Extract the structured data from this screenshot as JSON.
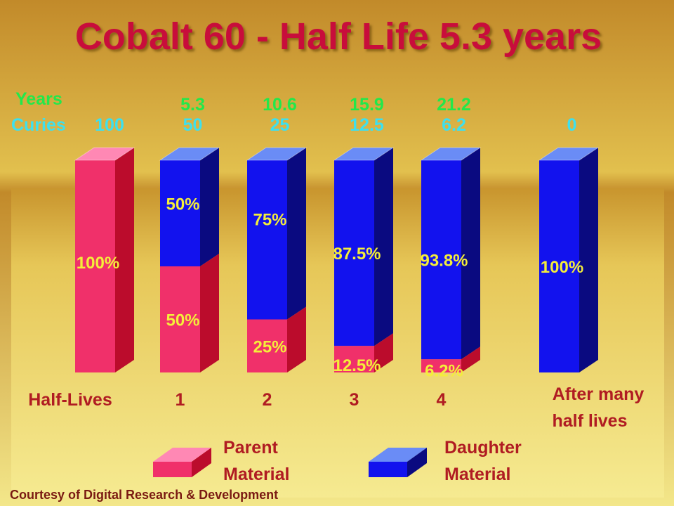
{
  "title": "Cobalt 60 - Half Life 5.3 years",
  "credit": "Courtesy of Digital Research & Development",
  "header_labels": {
    "years": "Years",
    "curies": "Curies"
  },
  "colors": {
    "background_top": "#c28a2a",
    "background_mid": "#e2c04e",
    "background_bottom": "#f3e78a",
    "title": "#c8103a",
    "years_text": "#22e84a",
    "curies_text": "#3ee0ee",
    "percent_text": "#f4ee3a",
    "axis_text": "#b01c22",
    "parent_front": "#f0306a",
    "parent_side": "#bb0c2c",
    "parent_top": "#ff88b4",
    "daughter_front": "#1212ee",
    "daughter_side": "#0a0a80",
    "daughter_top": "#6a8cf6"
  },
  "chart_data": {
    "type": "bar",
    "stacked": true,
    "title": "Cobalt 60 - Half Life 5.3 years",
    "xlabel": "Half-Lives",
    "ylabel": "",
    "ylim": [
      0,
      100
    ],
    "categories": [
      "",
      "1",
      "2",
      "3",
      "4",
      "After many half lives"
    ],
    "years": [
      "",
      "5.3",
      "10.6",
      "15.9",
      "21.2",
      ""
    ],
    "curies": [
      "100",
      "50",
      "25",
      "12.5",
      "6.2",
      "0"
    ],
    "series": [
      {
        "name": "Parent Material",
        "values": [
          100,
          50,
          25,
          12.5,
          6.2,
          0
        ],
        "labels": [
          "100%",
          "50%",
          "25%",
          "12.5%",
          "6.2%",
          ""
        ]
      },
      {
        "name": "Daughter Material",
        "values": [
          0,
          50,
          75,
          87.5,
          93.8,
          100
        ],
        "labels": [
          "",
          "50%",
          "75%",
          "87.5%",
          "93.8%",
          "100%"
        ]
      }
    ],
    "legend": [
      "Parent Material",
      "Daughter Material"
    ],
    "legend_lines": [
      [
        "Parent",
        "Material"
      ],
      [
        "Daughter",
        "Material"
      ]
    ],
    "legend_position": "bottom"
  }
}
